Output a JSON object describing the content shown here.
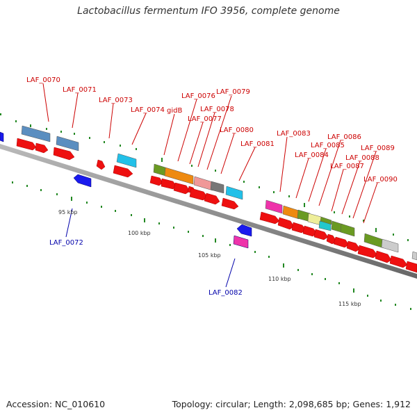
{
  "title": "Lactobacillus fermentum IFO 3956, complete genome",
  "footer": {
    "accession": "Accession: NC_010610",
    "summary": "Topology: circular; Length: 2,098,685 bp; Genes: 1,912"
  },
  "scale_labels": [
    "95 kbp",
    "100 kbp",
    "105 kbp",
    "110 kbp",
    "115 kbp"
  ],
  "gene_labels_forward": [
    "LAF_0070",
    "LAF_0071",
    "LAF_0073",
    "LAF_0074",
    "gidB",
    "LAF_0076",
    "LAF_0077",
    "LAF_0078",
    "LAF_0079",
    "LAF_0080",
    "LAF_0081",
    "LAF_0083",
    "LAF_0084",
    "LAF_0085",
    "LAF_0086",
    "LAF_0087",
    "LAF_0088",
    "LAF_0089",
    "LAF_0090"
  ],
  "gene_labels_reverse": [
    "LAF_0072",
    "LAF_0082"
  ],
  "colors": {
    "forward_label": "#cc0000",
    "reverse_label": "#0000aa",
    "cds_forward": "#ee0000",
    "cds_reverse": "#0000ee",
    "backbone": "#888888",
    "tick": "#228822"
  }
}
